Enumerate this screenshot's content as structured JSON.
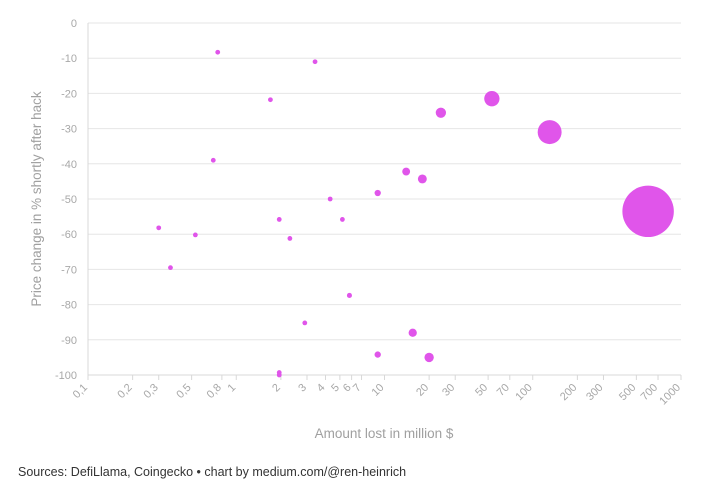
{
  "chart_data": {
    "type": "scatter",
    "title": "",
    "xlabel": "Amount lost in million $",
    "ylabel": "Price change in % shortly after hack",
    "x_scale": "log",
    "xlim": [
      0.1,
      1000
    ],
    "ylim": [
      -100,
      0
    ],
    "x_ticks": [
      {
        "value": 0.1,
        "label": "0,1"
      },
      {
        "value": 0.2,
        "label": "0,2"
      },
      {
        "value": 0.3,
        "label": "0,3"
      },
      {
        "value": 0.5,
        "label": "0,5"
      },
      {
        "value": 0.8,
        "label": "0,8"
      },
      {
        "value": 1,
        "label": "1"
      },
      {
        "value": 2,
        "label": "2"
      },
      {
        "value": 3,
        "label": "3"
      },
      {
        "value": 4,
        "label": "4"
      },
      {
        "value": 5,
        "label": "5"
      },
      {
        "value": 6,
        "label": "6"
      },
      {
        "value": 7,
        "label": "7"
      },
      {
        "value": 10,
        "label": "10"
      },
      {
        "value": 20,
        "label": "20"
      },
      {
        "value": 30,
        "label": "30"
      },
      {
        "value": 50,
        "label": "50"
      },
      {
        "value": 70,
        "label": "70"
      },
      {
        "value": 100,
        "label": "100"
      },
      {
        "value": 200,
        "label": "200"
      },
      {
        "value": 300,
        "label": "300"
      },
      {
        "value": 500,
        "label": "500"
      },
      {
        "value": 700,
        "label": "700"
      },
      {
        "value": 1000,
        "label": "1000"
      }
    ],
    "y_ticks": [
      {
        "value": 0,
        "label": "0"
      },
      {
        "value": -10,
        "label": "-10"
      },
      {
        "value": -20,
        "label": "-20"
      },
      {
        "value": -30,
        "label": "-30"
      },
      {
        "value": -40,
        "label": "-40"
      },
      {
        "value": -50,
        "label": "-50"
      },
      {
        "value": -60,
        "label": "-60"
      },
      {
        "value": -70,
        "label": "-70"
      },
      {
        "value": -80,
        "label": "-80"
      },
      {
        "value": -90,
        "label": "-90"
      },
      {
        "value": -100,
        "label": "-100"
      }
    ],
    "grid": true,
    "marker_color": "#e055ea",
    "note": "Bubble area scales with amount lost",
    "points": [
      {
        "x": 0.3,
        "y": -58.2
      },
      {
        "x": 0.36,
        "y": -69.5
      },
      {
        "x": 0.53,
        "y": -60.2
      },
      {
        "x": 0.7,
        "y": -39
      },
      {
        "x": 0.75,
        "y": -8.3
      },
      {
        "x": 1.7,
        "y": -21.8
      },
      {
        "x": 1.95,
        "y": -55.8
      },
      {
        "x": 1.95,
        "y": -99.3
      },
      {
        "x": 1.95,
        "y": -100
      },
      {
        "x": 2.3,
        "y": -61.2
      },
      {
        "x": 2.9,
        "y": -85.2
      },
      {
        "x": 3.4,
        "y": -11
      },
      {
        "x": 4.3,
        "y": -50
      },
      {
        "x": 5.2,
        "y": -55.8
      },
      {
        "x": 5.8,
        "y": -77.4
      },
      {
        "x": 9,
        "y": -48.3
      },
      {
        "x": 9,
        "y": -94.2
      },
      {
        "x": 14,
        "y": -42.2
      },
      {
        "x": 15.5,
        "y": -88
      },
      {
        "x": 18,
        "y": -44.3
      },
      {
        "x": 20,
        "y": -95
      },
      {
        "x": 24,
        "y": -25.5
      },
      {
        "x": 53,
        "y": -21.5
      },
      {
        "x": 130,
        "y": -31
      },
      {
        "x": 600,
        "y": -53.5
      }
    ]
  },
  "footer": {
    "source": "Sources: DefiLlama, Coingecko • chart by medium.com/@ren-heinrich"
  }
}
